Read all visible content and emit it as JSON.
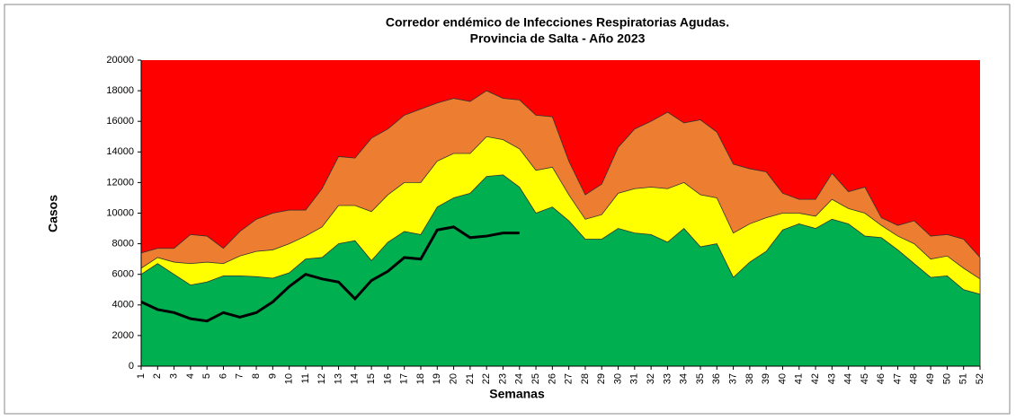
{
  "chart_data": {
    "type": "area",
    "title": "Corredor endémico de Infecciones Respiratorias Agudas.",
    "subtitle": "Provincia de Salta - Año 2023",
    "ylabel": "Casos",
    "xlabel": "Semanas",
    "background": "#ff0000",
    "categories": [
      "1",
      "2",
      "3",
      "4",
      "5",
      "6",
      "7",
      "8",
      "9",
      "10",
      "11",
      "12",
      "13",
      "14",
      "15",
      "16",
      "17",
      "18",
      "19",
      "20",
      "21",
      "22",
      "23",
      "24",
      "25",
      "26",
      "27",
      "28",
      "29",
      "30",
      "31",
      "32",
      "33",
      "34",
      "35",
      "36",
      "37",
      "38",
      "39",
      "40",
      "41",
      "42",
      "43",
      "44",
      "45",
      "46",
      "47",
      "48",
      "49",
      "50",
      "51",
      "52"
    ],
    "ylim": [
      0,
      20000
    ],
    "yticks": [
      0,
      2000,
      4000,
      6000,
      8000,
      10000,
      12000,
      14000,
      16000,
      18000,
      20000
    ],
    "series": [
      {
        "color": "#ed7d31",
        "values": [
          7400,
          7700,
          7700,
          8600,
          8500,
          7700,
          8800,
          9600,
          10000,
          10200,
          10200,
          11600,
          13700,
          13600,
          14900,
          15500,
          16400,
          16800,
          17200,
          17500,
          17300,
          18000,
          17500,
          17400,
          16400,
          16300,
          13400,
          11200,
          11900,
          14300,
          15500,
          16000,
          16600,
          15900,
          16100,
          15300,
          13200,
          12900,
          12700,
          11300,
          10900,
          10900,
          12600,
          11400,
          11700,
          9700,
          9200,
          9500,
          8500,
          8600,
          8300,
          7100
        ]
      },
      {
        "color": "#ffff00",
        "values": [
          6400,
          7100,
          6800,
          6700,
          6800,
          6700,
          7200,
          7500,
          7600,
          8000,
          8500,
          9100,
          10500,
          10500,
          10100,
          11200,
          12000,
          12000,
          13400,
          13900,
          13900,
          15000,
          14800,
          14200,
          12800,
          13000,
          11200,
          9600,
          9900,
          11300,
          11600,
          11700,
          11600,
          12000,
          11200,
          11000,
          8700,
          9300,
          9700,
          10000,
          10000,
          9800,
          10900,
          10300,
          10000,
          9200,
          8500,
          8000,
          7000,
          7200,
          6400,
          5700
        ]
      },
      {
        "color": "#00b050",
        "values": [
          6000,
          6700,
          6000,
          5300,
          5500,
          5900,
          5900,
          5850,
          5750,
          6100,
          7000,
          7100,
          8000,
          8200,
          6900,
          8100,
          8800,
          8600,
          10400,
          11000,
          11300,
          12400,
          12500,
          11700,
          10000,
          10400,
          9500,
          8300,
          8300,
          9000,
          8700,
          8600,
          8100,
          9000,
          7800,
          8000,
          5800,
          6800,
          7500,
          8900,
          9300,
          9000,
          9600,
          9300,
          8500,
          8400,
          7600,
          6700,
          5800,
          5900,
          5000,
          4700
        ]
      },
      {
        "type": "line",
        "color": "#000000",
        "values": [
          4200,
          3700,
          3500,
          3100,
          2950,
          3500,
          3200,
          3500,
          4200,
          5200,
          6000,
          5700,
          5500,
          4400,
          5600,
          6200,
          7100,
          7000,
          8900,
          9100,
          8400,
          8500,
          8700,
          8700,
          null,
          null,
          null,
          null,
          null,
          null,
          null,
          null,
          null,
          null,
          null,
          null,
          null,
          null,
          null,
          null,
          null,
          null,
          null,
          null,
          null,
          null,
          null,
          null,
          null,
          null,
          null,
          null
        ]
      }
    ]
  }
}
